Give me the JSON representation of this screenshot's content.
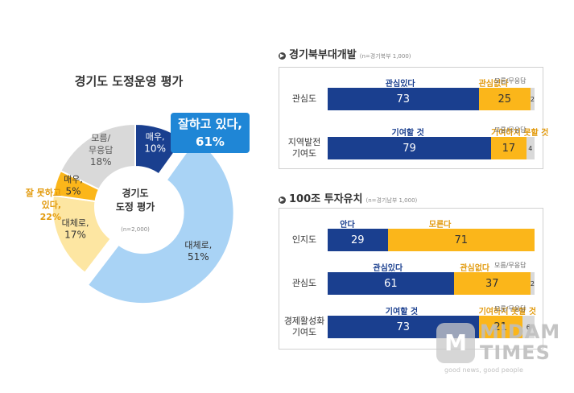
{
  "chart_data": [
    {
      "type": "pie",
      "title": "경기도 도정운영 평가",
      "center_label": "경기도\n도정 평가",
      "center_note": "(n=2,000)",
      "slices": [
        {
          "label": "매우,",
          "value": 10,
          "value_text": "10%",
          "color": "#1a3f8f",
          "text_color": "#ffffff"
        },
        {
          "label": "대체로,",
          "value": 51,
          "value_text": "51%",
          "color": "#a9d3f5",
          "text_color": "#333333"
        },
        {
          "label": "대체로,",
          "value": 17,
          "value_text": "17%",
          "color": "#fde6a2",
          "text_color": "#333333"
        },
        {
          "label": "매우,",
          "value": 5,
          "value_text": "5%",
          "color": "#fbb61a",
          "text_color": "#333333"
        },
        {
          "label": "모름/\n무응답",
          "value": 18,
          "value_text": "18%",
          "color": "#d9d9d9",
          "text_color": "#555555"
        }
      ],
      "group_good": {
        "label": "잘하고 있다,",
        "value_text": "61%",
        "value": 61
      },
      "group_bad": {
        "label": "잘 못하고\n있다,",
        "value_text": "22%",
        "value": 22
      }
    },
    {
      "type": "bar",
      "title": "경기북부대개발",
      "note": "(n=경기북부 1,000)",
      "rows": [
        {
          "label": "관심도",
          "headers": [
            "관심있다",
            "관심없다",
            "모름/무응답"
          ],
          "values": [
            73,
            25,
            2
          ]
        },
        {
          "label": "지역발전\n기여도",
          "headers": [
            "기여할 것",
            "기여하지 못할 것",
            "모름/무응답"
          ],
          "values": [
            79,
            17,
            4
          ]
        }
      ]
    },
    {
      "type": "bar",
      "title": "100조 투자유치",
      "note": "(n=경기남부 1,000)",
      "rows": [
        {
          "label": "인지도",
          "headers": [
            "안다",
            "모른다",
            ""
          ],
          "values": [
            29,
            71,
            0
          ]
        },
        {
          "label": "관심도",
          "headers": [
            "관심있다",
            "관심없다",
            "모름/무응답"
          ],
          "values": [
            61,
            37,
            2
          ]
        },
        {
          "label": "경제활성화\n기여도",
          "headers": [
            "기여할 것",
            "기여하지 못할 것",
            "모름/무응답"
          ],
          "values": [
            73,
            21,
            6
          ]
        }
      ]
    }
  ],
  "watermark": {
    "badge": "M",
    "name_line1": "MIDAM",
    "name_line2": "TIMES",
    "tagline": "good news, good people"
  }
}
